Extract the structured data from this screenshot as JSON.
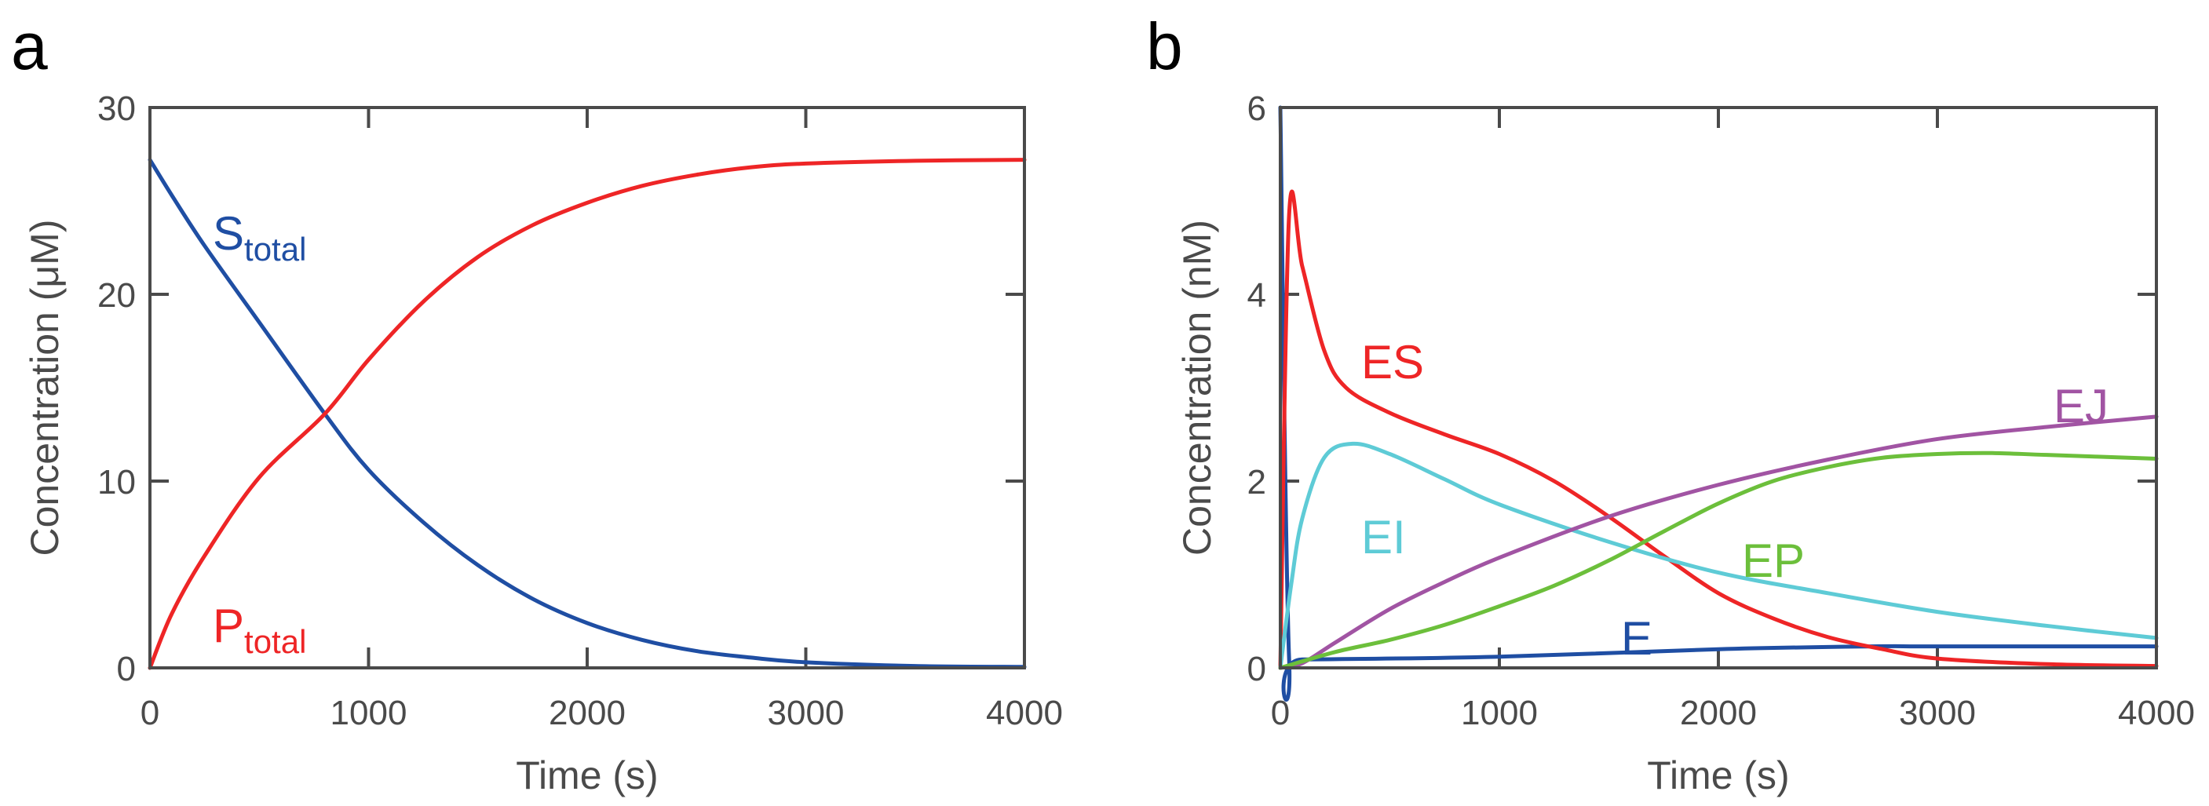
{
  "chart_data": [
    {
      "panel": "a",
      "type": "line",
      "xlabel": "Time (s)",
      "ylabel": "Concentration (μM)",
      "xlim": [
        0,
        4000
      ],
      "ylim": [
        0,
        30
      ],
      "xticks": [
        "0",
        "1000",
        "2000",
        "3000",
        "4000"
      ],
      "yticks": [
        "0",
        "10",
        "20",
        "30"
      ],
      "grid": false,
      "series": [
        {
          "name": "S",
          "subscript": "total",
          "color": "#1f4ea3",
          "x": [
            0,
            100,
            250,
            500,
            800,
            1000,
            1250,
            1500,
            1750,
            2000,
            2250,
            2500,
            2750,
            3000,
            3500,
            4000
          ],
          "y": [
            27.2,
            25.3,
            22.6,
            18.5,
            13.6,
            10.6,
            7.8,
            5.5,
            3.7,
            2.4,
            1.5,
            0.9,
            0.55,
            0.3,
            0.1,
            0.05
          ]
        },
        {
          "name": "P",
          "subscript": "total",
          "color": "#ee2526",
          "x": [
            0,
            100,
            250,
            500,
            800,
            1000,
            1250,
            1500,
            1750,
            2000,
            2250,
            2500,
            2750,
            3000,
            3500,
            4000
          ],
          "y": [
            0,
            2.9,
            6.0,
            10.2,
            13.6,
            16.5,
            19.6,
            22.0,
            23.7,
            24.9,
            25.8,
            26.4,
            26.8,
            27.0,
            27.15,
            27.2
          ]
        }
      ]
    },
    {
      "panel": "b",
      "type": "line",
      "xlabel": "Time (s)",
      "ylabel": "Concentration (nM)",
      "xlim": [
        0,
        4000
      ],
      "ylim": [
        0,
        6
      ],
      "xticks": [
        "0",
        "1000",
        "2000",
        "3000",
        "4000"
      ],
      "yticks": [
        "0",
        "2",
        "4",
        "6"
      ],
      "grid": false,
      "series": [
        {
          "name": "E",
          "color": "#1f4ea3",
          "x": [
            0,
            40,
            100,
            1000,
            2000,
            2700,
            3000,
            4000
          ],
          "y": [
            6.0,
            0.1,
            0.09,
            0.12,
            0.2,
            0.23,
            0.23,
            0.23
          ]
        },
        {
          "name": "ES",
          "color": "#ee2526",
          "x": [
            0,
            40,
            100,
            200,
            300,
            500,
            750,
            1000,
            1250,
            1500,
            1750,
            2000,
            2250,
            2500,
            2750,
            3000,
            3500,
            4000
          ],
          "y": [
            0,
            4.85,
            4.3,
            3.4,
            3.0,
            2.73,
            2.5,
            2.29,
            2.0,
            1.62,
            1.2,
            0.8,
            0.53,
            0.33,
            0.2,
            0.1,
            0.04,
            0.02
          ]
        },
        {
          "name": "EI",
          "color": "#5ecbd6",
          "x": [
            0,
            50,
            100,
            200,
            330,
            500,
            750,
            1000,
            1500,
            2000,
            2500,
            3000,
            3500,
            4000
          ],
          "y": [
            0,
            0.9,
            1.6,
            2.25,
            2.4,
            2.29,
            2.02,
            1.75,
            1.35,
            1.02,
            0.8,
            0.6,
            0.45,
            0.32
          ]
        },
        {
          "name": "EJ",
          "color": "#a154a3",
          "x": [
            0,
            100,
            250,
            500,
            750,
            1000,
            1500,
            2000,
            2500,
            3000,
            3500,
            4000
          ],
          "y": [
            0,
            0.05,
            0.27,
            0.63,
            0.92,
            1.18,
            1.62,
            1.96,
            2.23,
            2.45,
            2.58,
            2.69
          ]
        },
        {
          "name": "EP",
          "color": "#6cbf3b",
          "x": [
            0,
            250,
            500,
            750,
            1000,
            1250,
            1500,
            1750,
            2000,
            2250,
            2500,
            2750,
            3000,
            3250,
            3500,
            4000
          ],
          "y": [
            0,
            0.17,
            0.3,
            0.46,
            0.66,
            0.88,
            1.15,
            1.46,
            1.76,
            2.0,
            2.15,
            2.25,
            2.29,
            2.3,
            2.28,
            2.24
          ]
        }
      ]
    }
  ]
}
